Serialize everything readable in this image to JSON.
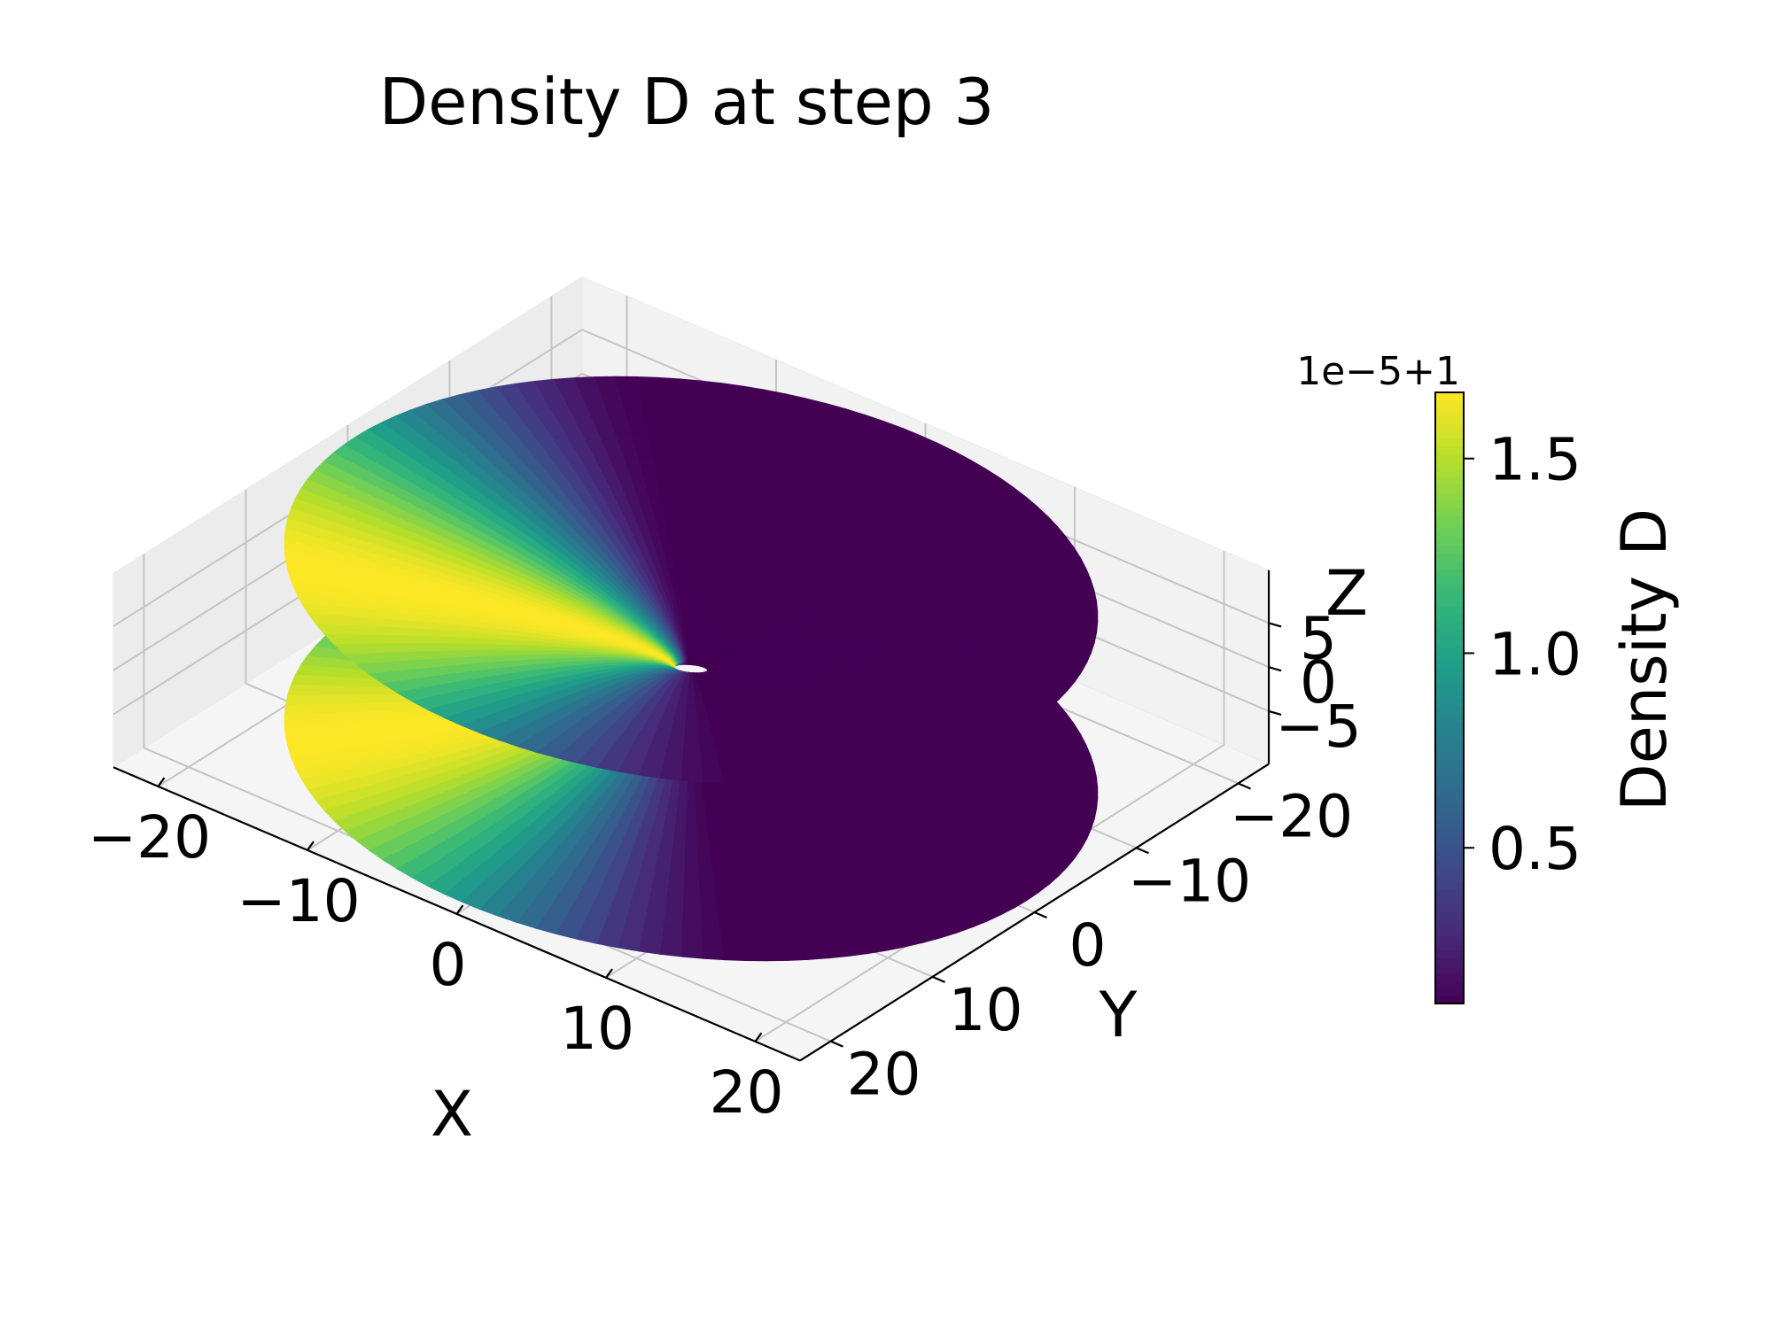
{
  "chart_data": {
    "type": "surface3d",
    "title": "Density D at step 3",
    "xlabel": "X",
    "ylabel": "Y",
    "zlabel": "Z",
    "x_ticks": [
      "−20",
      "−10",
      "0",
      "10",
      "20"
    ],
    "y_ticks": [
      "−20",
      "−10",
      "0",
      "10",
      "20"
    ],
    "z_ticks": [
      "−5",
      "0",
      "5"
    ],
    "xlim": [
      -23,
      23
    ],
    "ylim": [
      -23,
      23
    ],
    "zlim": [
      -11,
      11
    ],
    "grid": true,
    "surface": {
      "shape": "hyperboloid",
      "radius_max": 22.5,
      "z_range": [
        -10,
        10
      ],
      "color_by": "azimuth"
    },
    "colorbar": {
      "label": "Density D",
      "colormap": "viridis",
      "offset_text": "1e−5+1",
      "ticks": [
        "0.5",
        "1.0",
        "1.5"
      ],
      "tick_values": [
        0.5,
        1.0,
        1.5
      ],
      "range": [
        0.1,
        1.67
      ]
    }
  }
}
